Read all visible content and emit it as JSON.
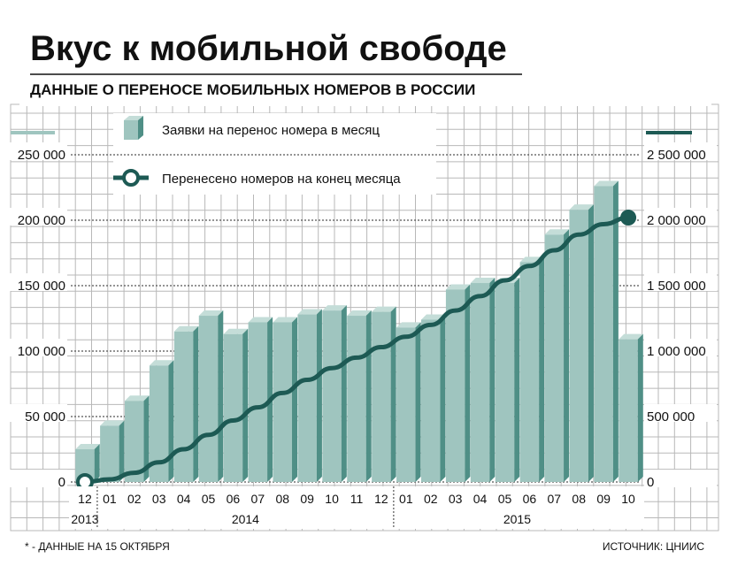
{
  "header": {
    "title": "Вкус к мобильной свободе",
    "subtitle": "ДАННЫЕ О ПЕРЕНОСЕ МОБИЛЬНЫХ НОМЕРОВ В РОССИИ"
  },
  "footer": {
    "note": "* - ДАННЫЕ НА 15 ОКТЯБРЯ",
    "source": "ИСТОЧНИК: ЦНИИС"
  },
  "colors": {
    "bar_front": "#9fc5bf",
    "bar_side": "#4f8f86",
    "bar_top": "#c4ddd8",
    "line": "#1d5a54",
    "grid": "#b8b8b8",
    "axis_text": "#111111"
  },
  "chart_data": {
    "type": "bar",
    "legend": {
      "bars": "Заявки на перенос номера в месяц",
      "line": "Перенесено номеров на конец месяца"
    },
    "categories": [
      "12",
      "01",
      "02",
      "03",
      "04",
      "05",
      "06",
      "07",
      "08",
      "09",
      "10",
      "11",
      "12",
      "01",
      "02",
      "03",
      "04",
      "05",
      "06",
      "07",
      "08",
      "09",
      "10"
    ],
    "year_labels": [
      {
        "label": "2013",
        "from": 0,
        "to": 0
      },
      {
        "label": "2014",
        "from": 1,
        "to": 12
      },
      {
        "label": "2015",
        "from": 13,
        "to": 22
      }
    ],
    "series": [
      {
        "name": "Заявки на перенос номера в месяц",
        "type": "bar",
        "axis": "left",
        "values": [
          25000,
          43000,
          62000,
          89000,
          115000,
          127000,
          113000,
          122000,
          122000,
          128000,
          131000,
          127000,
          130000,
          118000,
          124000,
          147000,
          152000,
          152000,
          168000,
          189000,
          208000,
          226000,
          109000
        ]
      },
      {
        "name": "Перенесено номеров на конец месяца",
        "type": "line",
        "axis": "right",
        "values": [
          0,
          20000,
          70000,
          150000,
          250000,
          360000,
          470000,
          570000,
          680000,
          780000,
          870000,
          950000,
          1030000,
          1110000,
          1200000,
          1310000,
          1420000,
          1540000,
          1650000,
          1770000,
          1890000,
          1970000,
          2020000
        ]
      }
    ],
    "left_axis": {
      "ylim": [
        0,
        250000
      ],
      "ticks": [
        "0",
        "50 000",
        "100 000",
        "150 000",
        "200 000",
        "250 000"
      ]
    },
    "right_axis": {
      "ylim": [
        0,
        2500000
      ],
      "ticks": [
        "0",
        "500 000",
        "1 000 000",
        "1 500 000",
        "2 000 000",
        "2 500 000"
      ]
    },
    "grid": true,
    "legend_position": "top-left"
  }
}
